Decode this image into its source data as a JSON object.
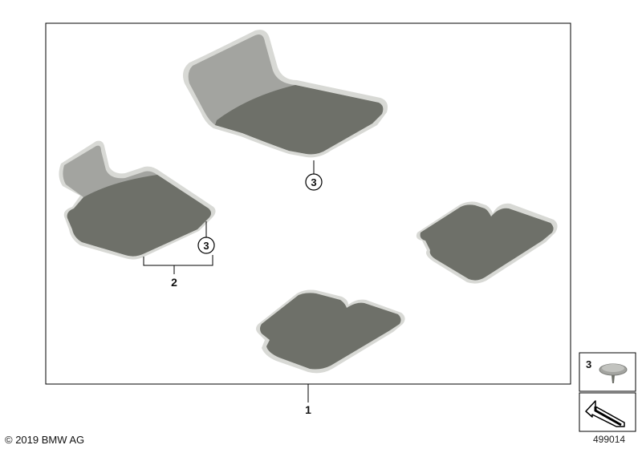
{
  "callouts": {
    "assembly": "1",
    "rear_mat_set": "2",
    "clip_driver": "3",
    "clip_rear_left": "3"
  },
  "inset": {
    "clip_number": "3"
  },
  "footer": {
    "copyright": "© 2019 BMW AG",
    "image_number": "499014"
  },
  "colors": {
    "mat_surface": "#6e7069",
    "mat_edge": "#d8d9d5",
    "heel_pad": "#a3a4a0",
    "frame": "#000000"
  }
}
